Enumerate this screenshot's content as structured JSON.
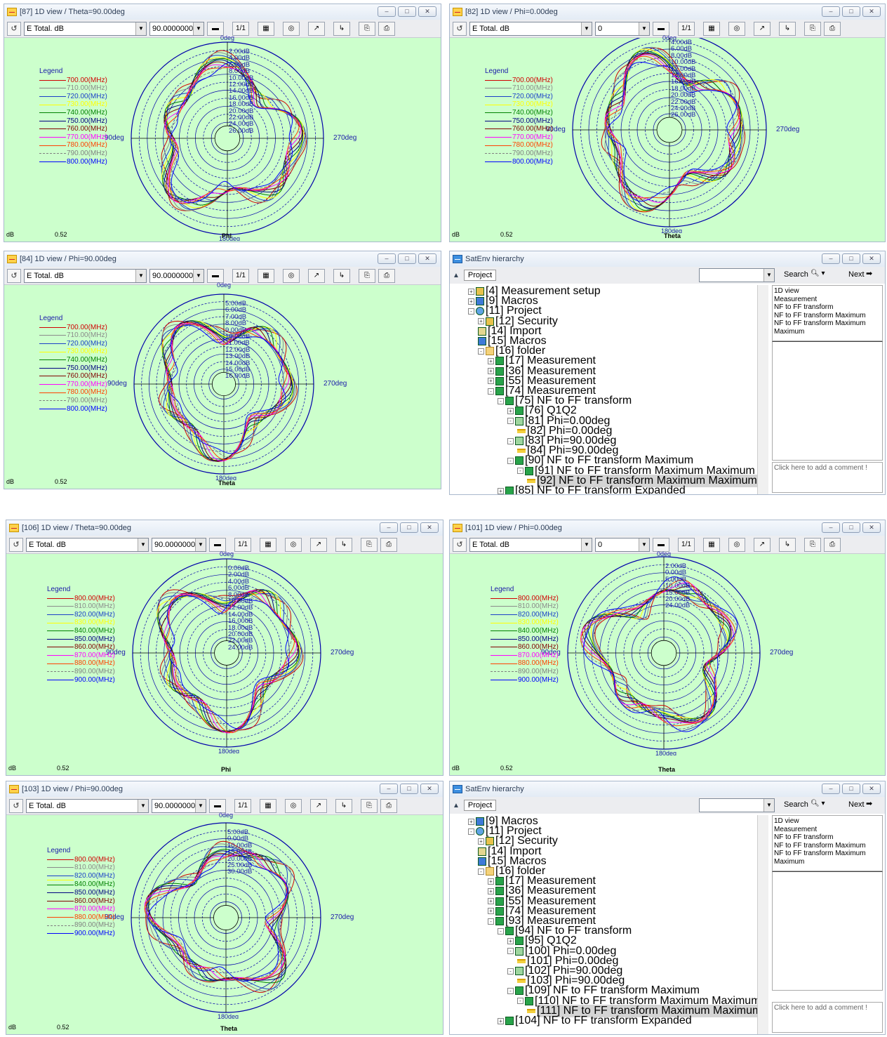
{
  "common": {
    "quantity": "E Total. dB",
    "legend_title": "Legend",
    "tick_0": "0deg",
    "tick_90": "90deg",
    "tick_180": "180deg",
    "tick_270": "270deg",
    "db_label": "dB",
    "scale_value": "0.52",
    "min_btn": "–",
    "max_btn": "□",
    "close_btn": "✕",
    "colors": [
      "#d00000",
      "#8a8a8a",
      "#1a3fc8",
      "#ffff00",
      "#008000",
      "#000080",
      "#800000",
      "#ff00ff",
      "#ff4000",
      "#808080",
      "#0000ff"
    ]
  },
  "panels": [
    {
      "id": "p87",
      "title": "[87] 1D view / Theta=90.00deg",
      "combo_value": "90.0000000",
      "xlabel": "Phi",
      "freqs": [
        "700.00(MHz)",
        "710.00(MHz)",
        "720.00(MHz)",
        "730.00(MHz)",
        "740.00(MHz)",
        "750.00(MHz)",
        "760.00(MHz)",
        "770.00(MHz)",
        "780.00(MHz)",
        "790.00(MHz)",
        "800.00(MHz)"
      ],
      "ring_labels": [
        "2.00dB",
        "4.00dB",
        "6.00dB",
        "8.00dB",
        "10.00dB",
        "12.00dB",
        "14.00dB",
        "16.00dB",
        "18.00dB",
        "20.00dB",
        "22.00dB",
        "24.00dB",
        "26.00dB"
      ]
    },
    {
      "id": "p82",
      "title": "[82] 1D view / Phi=0.00deg",
      "combo_value": "0",
      "xlabel": "Theta",
      "freqs": [
        "700.00(MHz)",
        "710.00(MHz)",
        "720.00(MHz)",
        "730.00(MHz)",
        "740.00(MHz)",
        "750.00(MHz)",
        "760.00(MHz)",
        "770.00(MHz)",
        "780.00(MHz)",
        "790.00(MHz)",
        "800.00(MHz)"
      ],
      "ring_labels": [
        "4.00dB",
        "6.00dB",
        "8.00dB",
        "10.00dB",
        "12.00dB",
        "14.00dB",
        "16.00dB",
        "18.00dB",
        "20.00dB",
        "22.00dB",
        "24.00dB",
        "26.00dB"
      ]
    },
    {
      "id": "p84",
      "title": "[84] 1D view / Phi=90.00deg",
      "combo_value": "90.0000000",
      "xlabel": "Theta",
      "freqs": [
        "700.00(MHz)",
        "710.00(MHz)",
        "720.00(MHz)",
        "730.00(MHz)",
        "740.00(MHz)",
        "750.00(MHz)",
        "760.00(MHz)",
        "770.00(MHz)",
        "780.00(MHz)",
        "790.00(MHz)",
        "800.00(MHz)"
      ],
      "ring_labels": [
        "5.00dB",
        "6.00dB",
        "7.00dB",
        "8.00dB",
        "9.00dB",
        "10.00dB",
        "11.00dB",
        "12.00dB",
        "13.00dB",
        "14.00dB",
        "15.00dB",
        "16.00dB"
      ]
    },
    {
      "id": "p106",
      "title": "[106] 1D view / Theta=90.00deg",
      "combo_value": "90.0000000",
      "xlabel": "Phi",
      "freqs": [
        "800.00(MHz)",
        "810.00(MHz)",
        "820.00(MHz)",
        "830.00(MHz)",
        "840.00(MHz)",
        "850.00(MHz)",
        "860.00(MHz)",
        "870.00(MHz)",
        "880.00(MHz)",
        "890.00(MHz)",
        "900.00(MHz)"
      ],
      "ring_labels": [
        "0.00dB",
        "2.00dB",
        "4.00dB",
        "6.00dB",
        "8.00dB",
        "10.00dB",
        "12.00dB",
        "14.00dB",
        "16.00dB",
        "18.00dB",
        "20.00dB",
        "22.00dB",
        "24.00dB"
      ]
    },
    {
      "id": "p101",
      "title": "[101] 1D view / Phi=0.00deg",
      "combo_value": "0",
      "xlabel": "Theta",
      "freqs": [
        "800.00(MHz)",
        "810.00(MHz)",
        "820.00(MHz)",
        "830.00(MHz)",
        "840.00(MHz)",
        "850.00(MHz)",
        "860.00(MHz)",
        "870.00(MHz)",
        "880.00(MHz)",
        "890.00(MHz)",
        "900.00(MHz)"
      ],
      "ring_labels": [
        "2.00dB",
        "0.00dB",
        "5.00dB",
        "10.00dB",
        "15.00dB",
        "20.00dB",
        "24.00dB"
      ]
    },
    {
      "id": "p103",
      "title": "[103] 1D view / Phi=90.00deg",
      "combo_value": "90.0000000",
      "xlabel": "Theta",
      "freqs": [
        "800.00(MHz)",
        "810.00(MHz)",
        "820.00(MHz)",
        "",
        "840.00(MHz)",
        "850.00(MHz)",
        "860.00(MHz)",
        "870.00(MHz)",
        "880.00(MHz)",
        "890.00(MHz)",
        "900.00(MHz)"
      ],
      "ring_labels": [
        "5.00dB",
        "0.00dB",
        "10.00dB",
        "15.00dB",
        "20.00dB",
        "25.00dB",
        "30.00dB"
      ]
    }
  ],
  "hier1": {
    "title": "SatEnv hierarchy",
    "tab": "Project",
    "search": "Search",
    "next": "Next",
    "side_text": [
      "1D view",
      "Measurement",
      "NF to FF transform",
      "NF to FF transform Maximum",
      "NF to FF transform Maximum",
      "Maximum"
    ],
    "comment": "Click here to add a comment !",
    "nodes": [
      {
        "d": 0,
        "e": "+",
        "i": "sec",
        "t": "[4] Measurement setup"
      },
      {
        "d": 0,
        "e": "+",
        "i": "mac",
        "t": "[9] Macros"
      },
      {
        "d": 0,
        "e": "-",
        "i": "proj",
        "t": "[11] Project"
      },
      {
        "d": 1,
        "e": "+",
        "i": "sec",
        "t": "[12] Security"
      },
      {
        "d": 1,
        "e": "",
        "i": "imp",
        "t": "[14] Import"
      },
      {
        "d": 1,
        "e": "",
        "i": "mac",
        "t": "[15] Macros"
      },
      {
        "d": 1,
        "e": "-",
        "i": "fold",
        "t": "[16] folder"
      },
      {
        "d": 2,
        "e": "+",
        "i": "tr",
        "t": "[17] Measurement"
      },
      {
        "d": 2,
        "e": "+",
        "i": "tr",
        "t": "[36] Measurement"
      },
      {
        "d": 2,
        "e": "+",
        "i": "tr",
        "t": "[55] Measurement"
      },
      {
        "d": 2,
        "e": "-",
        "i": "tr",
        "t": "[74] Measurement"
      },
      {
        "d": 3,
        "e": "-",
        "i": "tr",
        "t": "[75] NF to FF transform"
      },
      {
        "d": 4,
        "e": "+",
        "i": "tr",
        "t": "[76] Q1Q2"
      },
      {
        "d": 4,
        "e": "-",
        "i": "phi",
        "t": "[81] Phi=0.00deg"
      },
      {
        "d": 5,
        "e": "",
        "i": "view",
        "t": "[82] Phi=0.00deg"
      },
      {
        "d": 4,
        "e": "-",
        "i": "phi",
        "t": "[83] Phi=90.00deg"
      },
      {
        "d": 5,
        "e": "",
        "i": "view",
        "t": "[84] Phi=90.00deg"
      },
      {
        "d": 4,
        "e": "-",
        "i": "tr",
        "t": "[90] NF to FF transform Maximum"
      },
      {
        "d": 5,
        "e": "-",
        "i": "tr",
        "t": "[91] NF to FF transform Maximum Maximum"
      },
      {
        "d": 6,
        "e": "",
        "i": "view",
        "t": "[92] NF to FF transform Maximum Maximum",
        "sel": true
      },
      {
        "d": 3,
        "e": "+",
        "i": "tr",
        "t": "[85] NF to FF transform Expanded"
      }
    ]
  },
  "hier2": {
    "title": "SatEnv hierarchy",
    "tab": "Project",
    "search": "Search",
    "next": "Next",
    "side_text": [
      "1D view",
      "Measurement",
      "NF to FF transform",
      "NF to FF transform Maximum",
      "NF to FF transform Maximum",
      "Maximum"
    ],
    "comment": "Click here to add a comment !",
    "nodes": [
      {
        "d": 0,
        "e": "+",
        "i": "mac",
        "t": "[9] Macros"
      },
      {
        "d": 0,
        "e": "-",
        "i": "proj",
        "t": "[11] Project"
      },
      {
        "d": 1,
        "e": "+",
        "i": "sec",
        "t": "[12] Security"
      },
      {
        "d": 1,
        "e": "",
        "i": "imp",
        "t": "[14] Import"
      },
      {
        "d": 1,
        "e": "",
        "i": "mac",
        "t": "[15] Macros"
      },
      {
        "d": 1,
        "e": "-",
        "i": "fold",
        "t": "[16] folder"
      },
      {
        "d": 2,
        "e": "+",
        "i": "tr",
        "t": "[17] Measurement"
      },
      {
        "d": 2,
        "e": "+",
        "i": "tr",
        "t": "[36] Measurement"
      },
      {
        "d": 2,
        "e": "+",
        "i": "tr",
        "t": "[55] Measurement"
      },
      {
        "d": 2,
        "e": "+",
        "i": "tr",
        "t": "[74] Measurement"
      },
      {
        "d": 2,
        "e": "-",
        "i": "tr",
        "t": "[93] Measurement"
      },
      {
        "d": 3,
        "e": "-",
        "i": "tr",
        "t": "[94] NF to FF transform"
      },
      {
        "d": 4,
        "e": "+",
        "i": "tr",
        "t": "[95] Q1Q2"
      },
      {
        "d": 4,
        "e": "-",
        "i": "phi",
        "t": "[100] Phi=0.00deg"
      },
      {
        "d": 5,
        "e": "",
        "i": "view",
        "t": "[101] Phi=0.00deg"
      },
      {
        "d": 4,
        "e": "-",
        "i": "phi",
        "t": "[102] Phi=90.00deg"
      },
      {
        "d": 5,
        "e": "",
        "i": "view",
        "t": "[103] Phi=90.00deg"
      },
      {
        "d": 4,
        "e": "-",
        "i": "tr",
        "t": "[109] NF to FF transform Maximum"
      },
      {
        "d": 5,
        "e": "-",
        "i": "tr",
        "t": "[110] NF to FF transform Maximum Maximum"
      },
      {
        "d": 6,
        "e": "",
        "i": "view",
        "t": "[111] NF to FF transform Maximum Maximum",
        "sel": true
      },
      {
        "d": 3,
        "e": "+",
        "i": "tr",
        "t": "[104] NF to FF transform Expanded"
      }
    ]
  }
}
